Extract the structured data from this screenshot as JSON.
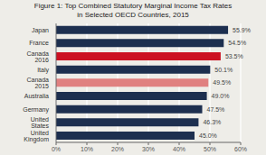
{
  "chart_data": {
    "type": "bar",
    "orientation": "horizontal",
    "title": "Figure 1: Top Combined Statutory Marginal Income Tax Rates\nin Selected OECD Countries, 2015",
    "categories": [
      "Japan",
      "France",
      "Canada 2016",
      "Italy",
      "Canada 2015",
      "Australia",
      "Germany",
      "United States",
      "United Kingdom"
    ],
    "values": [
      55.9,
      54.5,
      53.5,
      50.1,
      49.5,
      49.0,
      47.5,
      46.3,
      45.0
    ],
    "value_labels": [
      "55.9%",
      "54.5%",
      "53.5%",
      "50.1%",
      "49.5%",
      "49.0%",
      "47.5%",
      "46.3%",
      "45.0%"
    ],
    "data_labels": true,
    "colors": [
      "#1d2f4f",
      "#1d2f4f",
      "#cc1122",
      "#1d2f4f",
      "#e08080",
      "#1d2f4f",
      "#1d2f4f",
      "#1d2f4f",
      "#1d2f4f"
    ],
    "xlim": [
      0,
      60
    ],
    "xticks": [
      {
        "value": 0,
        "label": "0%"
      },
      {
        "value": 10,
        "label": "10%"
      },
      {
        "value": 20,
        "label": "20%"
      },
      {
        "value": 30,
        "label": "30%"
      },
      {
        "value": 40,
        "label": "40%"
      },
      {
        "value": 50,
        "label": "50%"
      },
      {
        "value": 60,
        "label": "60%"
      }
    ],
    "grid": true
  }
}
